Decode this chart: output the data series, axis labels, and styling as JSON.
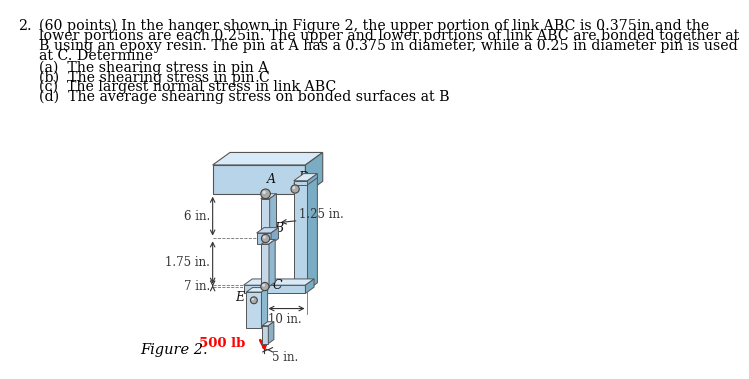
{
  "problem_text_lines": [
    "(60 points) In the hanger shown in Figure 2, the upper portion of link ABC is 0.375in and the",
    "lower portions are each 0.25in. The upper and lower portions of link ABC are bonded together at",
    "B using an epoxy resin. The pin at A has a 0.375 in diameter, while a 0.25 in diameter pin is used",
    "at C. Determine"
  ],
  "sub_questions": [
    "(a)  The shearing stress in pin A",
    "(b)  The shearing stress in pin C",
    "(c)  The largest normal stress in link ABC",
    "(d)  The average shearing stress on bonded surfaces at B"
  ],
  "figure_label": "Figure 2.",
  "bg_color": "#ffffff",
  "text_color": "#000000",
  "steel_face": "#b8d4e8",
  "steel_top": "#d8eaf8",
  "steel_side": "#7aacc4",
  "steel_dark": "#5888a8",
  "steel_hl": "#e8f4ff",
  "dim_color": "#333333",
  "red_color": "#ff0000",
  "text_fontsize": 10.2,
  "label_fontsize": 9.0,
  "dim_fontsize": 8.5,
  "fig_label_fontsize": 10.5
}
